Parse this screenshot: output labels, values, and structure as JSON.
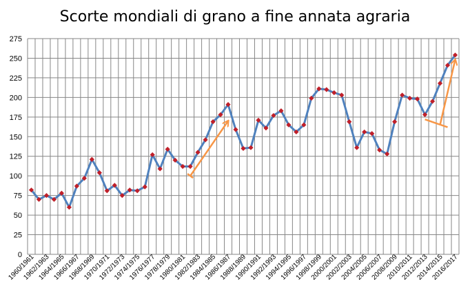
{
  "chart_data": {
    "type": "line",
    "title": "Scorte mondiali di grano a fine annata agraria",
    "xlabel": "",
    "ylabel": "",
    "ylim": [
      0,
      275
    ],
    "yticks": [
      0,
      25,
      50,
      75,
      100,
      125,
      150,
      175,
      200,
      225,
      250,
      275
    ],
    "grid": true,
    "legend": "none",
    "x_tick_labels": [
      "1960/1961",
      "1962/1963",
      "1964/1965",
      "1966/1967",
      "1968/1969",
      "1970/1971",
      "1972/1973",
      "1974/1975",
      "1976/1977",
      "1978/1979",
      "1980/1981",
      "1982/1983",
      "1984/1985",
      "1986/1987",
      "1988/1989",
      "1990/1991",
      "1992/1993",
      "1994/1995",
      "1996/1997",
      "1998/1999",
      "2000/2001",
      "2002/2003",
      "2004/2005",
      "2006/2007",
      "2008/2009",
      "2010/2011",
      "2012/2013",
      "2014/2015",
      "2016/2017"
    ],
    "categories": [
      "1960/1961",
      "1961/1962",
      "1962/1963",
      "1963/1964",
      "1964/1965",
      "1965/1966",
      "1966/1967",
      "1967/1968",
      "1968/1969",
      "1969/1970",
      "1970/1971",
      "1971/1972",
      "1972/1973",
      "1973/1974",
      "1974/1975",
      "1975/1976",
      "1976/1977",
      "1977/1978",
      "1978/1979",
      "1979/1980",
      "1980/1981",
      "1981/1982",
      "1982/1983",
      "1983/1984",
      "1984/1985",
      "1985/1986",
      "1986/1987",
      "1987/1988",
      "1988/1989",
      "1989/1990",
      "1990/1991",
      "1991/1992",
      "1992/1993",
      "1993/1994",
      "1994/1995",
      "1995/1996",
      "1996/1997",
      "1997/1998",
      "1998/1999",
      "1999/2000",
      "2000/2001",
      "2001/2002",
      "2002/2003",
      "2003/2004",
      "2004/2005",
      "2005/2006",
      "2006/2007",
      "2007/2008",
      "2008/2009",
      "2009/2010",
      "2010/2011",
      "2011/2012",
      "2012/2013",
      "2013/2014",
      "2014/2015",
      "2015/2016",
      "2016/2017"
    ],
    "series": [
      {
        "values": [
          82,
          70,
          75,
          70,
          78,
          60,
          87,
          97,
          121,
          104,
          81,
          88,
          75,
          82,
          81,
          86,
          127,
          109,
          134,
          120,
          112,
          112,
          130,
          146,
          169,
          178,
          191,
          159,
          135,
          136,
          171,
          161,
          177,
          183,
          165,
          156,
          165,
          199,
          211,
          210,
          206,
          203,
          169,
          136,
          156,
          154,
          133,
          128,
          169,
          203,
          199,
          198,
          178,
          195,
          218,
          241,
          254
        ],
        "line_color": "#4F81BD",
        "marker_color": "#C0202A"
      }
    ],
    "annotations": {
      "arrow_color": "#F79646",
      "arrows": [
        {
          "from": [
            "1981/1982",
            100
          ],
          "to": [
            "1986/1987",
            170
          ]
        },
        {
          "from": [
            "2014/2015",
            165
          ],
          "to": [
            "2016/2017",
            248
          ]
        }
      ],
      "brackets": [
        {
          "from": [
            "1981/1982",
            100
          ]
        },
        {
          "from": [
            "2012/2013",
            172
          ],
          "to": [
            "2015/2016",
            162
          ]
        }
      ]
    }
  }
}
